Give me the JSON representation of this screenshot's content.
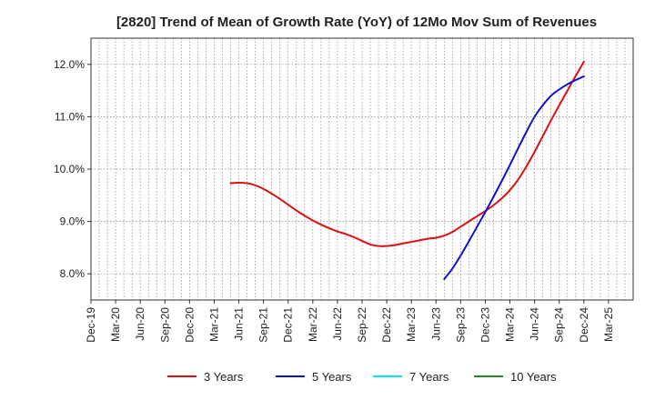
{
  "chart_data": {
    "type": "line",
    "title": "[2820]  Trend of Mean of Growth Rate (YoY) of 12Mo Mov Sum of Revenues",
    "xlabel": "",
    "ylabel": "",
    "ylim": [
      7.5,
      12.5
    ],
    "yticks": [
      8.0,
      9.0,
      10.0,
      11.0,
      12.0
    ],
    "ytick_labels": [
      "8.0%",
      "9.0%",
      "10.0%",
      "11.0%",
      "12.0%"
    ],
    "xlim": [
      0,
      66
    ],
    "xtick_labels": [
      "Dec-19",
      "Mar-20",
      "Jun-20",
      "Sep-20",
      "Dec-20",
      "Mar-21",
      "Jun-21",
      "Sep-21",
      "Dec-21",
      "Mar-22",
      "Jun-22",
      "Sep-22",
      "Dec-22",
      "Mar-23",
      "Jun-23",
      "Sep-23",
      "Dec-23",
      "Mar-24",
      "Jun-24",
      "Sep-24",
      "Dec-24",
      "Mar-25"
    ],
    "grid": true,
    "legend_position": "bottom",
    "series": [
      {
        "name": "3 Years",
        "color": "#dd1111",
        "x": [
          17,
          18,
          19,
          20,
          21,
          22,
          23,
          24,
          25,
          26,
          27,
          28,
          29,
          30,
          31,
          32,
          33,
          34,
          35,
          36,
          37,
          38,
          39,
          40,
          41,
          42,
          43,
          44,
          45,
          46,
          47,
          48,
          49,
          50,
          51,
          52,
          53,
          54,
          55,
          56,
          57,
          58,
          59,
          60
        ],
        "values": [
          9.73,
          9.74,
          9.73,
          9.69,
          9.62,
          9.53,
          9.43,
          9.32,
          9.21,
          9.11,
          9.02,
          8.94,
          8.87,
          8.81,
          8.76,
          8.7,
          8.63,
          8.56,
          8.53,
          8.53,
          8.55,
          8.58,
          8.61,
          8.64,
          8.67,
          8.69,
          8.73,
          8.8,
          8.9,
          9.0,
          9.1,
          9.2,
          9.31,
          9.44,
          9.6,
          9.8,
          10.05,
          10.33,
          10.63,
          10.93,
          11.22,
          11.5,
          11.78,
          12.05
        ]
      },
      {
        "name": "5 Years",
        "color": "#1111cc",
        "x": [
          43,
          44,
          45,
          46,
          47,
          48,
          49,
          50,
          51,
          52,
          53,
          54,
          55,
          56,
          57,
          58,
          59,
          60
        ],
        "values": [
          7.9,
          8.1,
          8.35,
          8.62,
          8.9,
          9.18,
          9.47,
          9.77,
          10.08,
          10.4,
          10.71,
          11.0,
          11.22,
          11.4,
          11.52,
          11.62,
          11.7,
          11.77
        ]
      },
      {
        "name": "7 Years",
        "color": "#00e5ee",
        "x": [],
        "values": []
      },
      {
        "name": "10 Years",
        "color": "#228B22",
        "x": [],
        "values": []
      }
    ]
  }
}
